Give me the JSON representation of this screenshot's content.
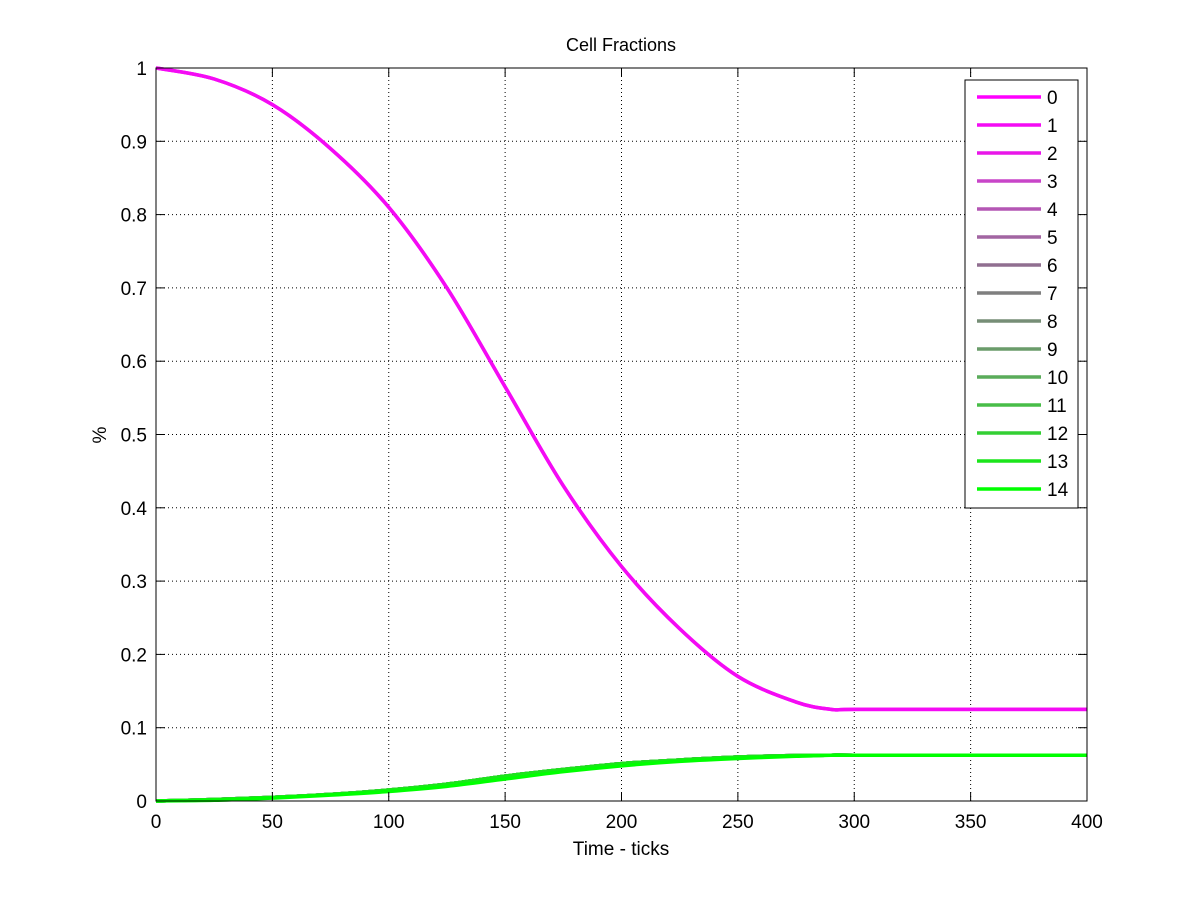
{
  "chart_data": {
    "type": "line",
    "title": "Cell Fractions",
    "xlabel": "Time - ticks",
    "ylabel": "%",
    "xlim": [
      0,
      400
    ],
    "ylim": [
      0,
      1
    ],
    "xticks": [
      0,
      50,
      100,
      150,
      200,
      250,
      300,
      350,
      400
    ],
    "yticks": [
      0,
      0.1,
      0.2,
      0.3,
      0.4,
      0.5,
      0.6,
      0.7,
      0.8,
      0.9,
      1
    ],
    "xtick_labels": [
      "0",
      "50",
      "100",
      "150",
      "200",
      "250",
      "300",
      "350",
      "400"
    ],
    "ytick_labels": [
      "0",
      "0.1",
      "0.2",
      "0.3",
      "0.4",
      "0.5",
      "0.6",
      "0.7",
      "0.8",
      "0.9",
      "1"
    ],
    "grid": true,
    "legend_position": "top-right",
    "x": [
      0,
      25,
      50,
      75,
      100,
      125,
      150,
      175,
      200,
      225,
      250,
      275,
      290,
      300,
      350,
      400
    ],
    "series": [
      {
        "name": "0",
        "color": "#ff00ff",
        "values": [
          1.0,
          0.985,
          0.95,
          0.89,
          0.81,
          0.7,
          0.565,
          0.43,
          0.32,
          0.235,
          0.17,
          0.135,
          0.125,
          0.125,
          0.125,
          0.125
        ]
      },
      {
        "name": "1",
        "color": "#f40bf4",
        "values": [
          1.0,
          0.985,
          0.95,
          0.89,
          0.81,
          0.7,
          0.565,
          0.43,
          0.32,
          0.235,
          0.17,
          0.135,
          0.125,
          0.125,
          0.125,
          0.125
        ]
      },
      {
        "name": "2",
        "color": "#e916e9",
        "values": [
          0.0,
          0.002,
          0.005,
          0.009,
          0.015,
          0.023,
          0.034,
          0.043,
          0.051,
          0.056,
          0.06,
          0.062,
          0.0625,
          0.0625,
          0.0625,
          0.0625
        ]
      },
      {
        "name": "3",
        "color": "#c845c8",
        "values": [
          0.0,
          0.002,
          0.005,
          0.009,
          0.015,
          0.023,
          0.034,
          0.043,
          0.051,
          0.056,
          0.06,
          0.062,
          0.0625,
          0.0625,
          0.0625,
          0.0625
        ]
      },
      {
        "name": "4",
        "color": "#b456b4",
        "values": [
          0.0,
          0.002,
          0.005,
          0.009,
          0.015,
          0.023,
          0.034,
          0.043,
          0.051,
          0.056,
          0.06,
          0.062,
          0.0625,
          0.0625,
          0.0625,
          0.0625
        ]
      },
      {
        "name": "5",
        "color": "#a265a2",
        "values": [
          0.0,
          0.002,
          0.005,
          0.009,
          0.015,
          0.023,
          0.034,
          0.043,
          0.051,
          0.056,
          0.06,
          0.062,
          0.0625,
          0.0625,
          0.0625,
          0.0625
        ]
      },
      {
        "name": "6",
        "color": "#906f90",
        "values": [
          0.0,
          0.002,
          0.005,
          0.009,
          0.015,
          0.023,
          0.034,
          0.043,
          0.051,
          0.056,
          0.06,
          0.062,
          0.0625,
          0.0625,
          0.0625,
          0.0625
        ]
      },
      {
        "name": "7",
        "color": "#7f7f7f",
        "values": [
          0.0,
          0.002,
          0.005,
          0.009,
          0.015,
          0.023,
          0.034,
          0.043,
          0.051,
          0.056,
          0.06,
          0.062,
          0.0625,
          0.0625,
          0.0625,
          0.0625
        ]
      },
      {
        "name": "8",
        "color": "#768e76",
        "values": [
          0.0,
          0.002,
          0.005,
          0.009,
          0.015,
          0.023,
          0.034,
          0.043,
          0.051,
          0.056,
          0.06,
          0.062,
          0.0625,
          0.0625,
          0.0625,
          0.0625
        ]
      },
      {
        "name": "9",
        "color": "#6a9c6a",
        "values": [
          0.0,
          0.002,
          0.005,
          0.009,
          0.015,
          0.023,
          0.034,
          0.043,
          0.051,
          0.056,
          0.06,
          0.062,
          0.0625,
          0.0625,
          0.0625,
          0.0625
        ]
      },
      {
        "name": "10",
        "color": "#5aac5a",
        "values": [
          0.0,
          0.002,
          0.005,
          0.009,
          0.015,
          0.023,
          0.034,
          0.043,
          0.051,
          0.056,
          0.06,
          0.062,
          0.0625,
          0.0625,
          0.0625,
          0.0625
        ]
      },
      {
        "name": "11",
        "color": "#48bd48",
        "values": [
          0.0,
          0.002,
          0.005,
          0.009,
          0.015,
          0.023,
          0.034,
          0.043,
          0.051,
          0.056,
          0.06,
          0.062,
          0.0625,
          0.0625,
          0.0625,
          0.0625
        ]
      },
      {
        "name": "12",
        "color": "#33cf33",
        "values": [
          0.0,
          0.002,
          0.005,
          0.009,
          0.015,
          0.023,
          0.034,
          0.043,
          0.051,
          0.056,
          0.06,
          0.062,
          0.0625,
          0.0625,
          0.0625,
          0.0625
        ]
      },
      {
        "name": "13",
        "color": "#1be51b",
        "values": [
          0.0,
          0.002,
          0.005,
          0.009,
          0.015,
          0.023,
          0.034,
          0.043,
          0.051,
          0.056,
          0.06,
          0.062,
          0.0625,
          0.0625,
          0.0625,
          0.0625
        ]
      },
      {
        "name": "14",
        "color": "#00ff00",
        "values": [
          0.0,
          0.001,
          0.004,
          0.008,
          0.013,
          0.02,
          0.03,
          0.04,
          0.048,
          0.054,
          0.058,
          0.061,
          0.0625,
          0.0625,
          0.0625,
          0.0625
        ]
      }
    ]
  }
}
